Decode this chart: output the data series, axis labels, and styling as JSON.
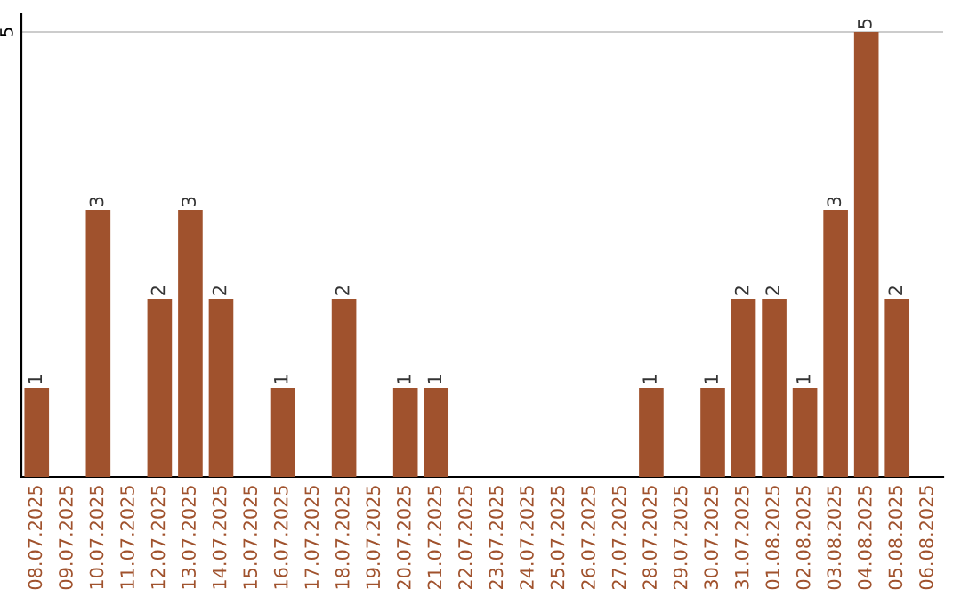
{
  "chart_data": {
    "type": "bar",
    "categories": [
      "08.07.2025",
      "09.07.2025",
      "10.07.2025",
      "11.07.2025",
      "12.07.2025",
      "13.07.2025",
      "14.07.2025",
      "15.07.2025",
      "16.07.2025",
      "17.07.2025",
      "18.07.2025",
      "19.07.2025",
      "20.07.2025",
      "21.07.2025",
      "22.07.2025",
      "23.07.2025",
      "24.07.2025",
      "25.07.2025",
      "26.07.2025",
      "27.07.2025",
      "28.07.2025",
      "29.07.2025",
      "30.07.2025",
      "31.07.2025",
      "01.08.2025",
      "02.08.2025",
      "03.08.2025",
      "04.08.2025",
      "05.08.2025",
      "06.08.2025"
    ],
    "values": [
      1,
      0,
      3,
      0,
      2,
      3,
      2,
      0,
      1,
      0,
      2,
      0,
      1,
      1,
      0,
      0,
      0,
      0,
      0,
      0,
      1,
      0,
      1,
      2,
      2,
      1,
      3,
      5,
      2,
      0
    ],
    "value_labels": [
      "1",
      null,
      "3",
      null,
      "2",
      "3",
      "2",
      null,
      "1",
      null,
      "2",
      null,
      "1",
      "1",
      null,
      null,
      null,
      null,
      null,
      null,
      "1",
      null,
      "1",
      "2",
      "2",
      "1",
      "3",
      "5",
      "2",
      null
    ],
    "color": "#a0522d",
    "ylim": [
      0,
      5.2
    ],
    "yticks": [
      5
    ],
    "grid": "y"
  }
}
